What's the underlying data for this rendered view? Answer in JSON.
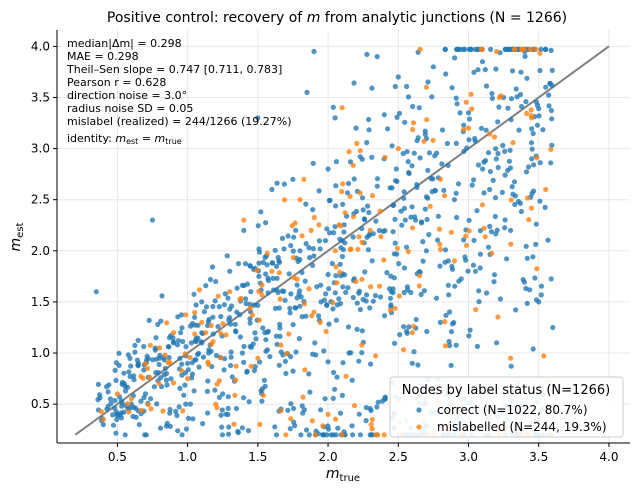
{
  "chart_data": {
    "type": "scatter",
    "title": "Positive control: recovery of m from analytic junctions (N = 1266)",
    "title_parts": {
      "before": "Positive control: recovery of ",
      "var": "m",
      "after": " from analytic junctions (N = 1266)"
    },
    "xlabel": {
      "base": "m",
      "sub": "true"
    },
    "ylabel": {
      "base": "m",
      "sub": "est"
    },
    "xlim": [
      0.07,
      4.15
    ],
    "ylim": [
      0.12,
      4.16
    ],
    "xticks": [
      0.5,
      1.0,
      1.5,
      2.0,
      2.5,
      3.0,
      3.5,
      4.0
    ],
    "xtick_labels": [
      "0.5",
      "1.0",
      "1.5",
      "2.0",
      "2.5",
      "3.0",
      "3.5",
      "4.0"
    ],
    "yticks": [
      0.5,
      1.0,
      1.5,
      2.0,
      2.5,
      3.0,
      3.5,
      4.0
    ],
    "ytick_labels": [
      "0.5",
      "1.0",
      "1.5",
      "2.0",
      "2.5",
      "3.0",
      "3.5",
      "4.0"
    ],
    "grid": true,
    "stats": [
      "median|Δm| = 0.298",
      "MAE = 0.298",
      "Theil–Sen slope = 0.747 [0.711, 0.783]",
      "Pearson r = 0.628",
      "direction noise = 3.0°",
      "radius noise SD = 0.05",
      "mislabel (realized) = 244/1266 (19.27%)"
    ],
    "identity_label": {
      "prefix": "identity: ",
      "lhs": "m",
      "lhs_sub": "est",
      "eq": " = ",
      "rhs": "m",
      "rhs_sub": "true"
    },
    "identity_line": {
      "x": [
        0.2,
        4.0
      ],
      "y": [
        0.2,
        4.0
      ],
      "color": "#808080"
    },
    "series": [
      {
        "name": "correct",
        "count": 1022,
        "color": "#1f77b4"
      },
      {
        "name": "mislabelled",
        "count": 244,
        "color": "#ff7f0e"
      }
    ],
    "legend": {
      "title": "Nodes by label status (N=1266)",
      "entries": [
        "correct (N=1022, 80.7%)",
        "mislabelled (N=244, 19.3%)"
      ],
      "placement": "lower-right"
    },
    "sample_points": {
      "correct": [
        [
          0.35,
          1.6
        ],
        [
          0.4,
          0.3
        ],
        [
          0.45,
          0.55
        ],
        [
          0.5,
          0.4
        ],
        [
          0.55,
          0.7
        ],
        [
          0.6,
          0.5
        ],
        [
          0.65,
          0.9
        ],
        [
          0.7,
          0.6
        ],
        [
          0.75,
          2.3
        ],
        [
          0.8,
          0.95
        ],
        [
          0.85,
          0.8
        ],
        [
          0.9,
          1.1
        ],
        [
          0.95,
          1.2
        ],
        [
          1.0,
          0.9
        ],
        [
          1.05,
          1.35
        ],
        [
          1.1,
          1.5
        ],
        [
          1.15,
          1.0
        ],
        [
          1.2,
          1.7
        ],
        [
          1.25,
          0.6
        ],
        [
          1.3,
          1.8
        ],
        [
          1.35,
          1.4
        ],
        [
          1.4,
          2.2
        ],
        [
          1.45,
          1.6
        ],
        [
          1.5,
          3.3
        ],
        [
          1.55,
          1.2
        ],
        [
          1.6,
          2.6
        ],
        [
          1.65,
          1.9
        ],
        [
          1.7,
          0.8
        ],
        [
          1.75,
          2.7
        ],
        [
          1.8,
          2.0
        ],
        [
          1.85,
          3.55
        ],
        [
          1.9,
          3.95
        ],
        [
          1.95,
          1.5
        ],
        [
          2.0,
          2.8
        ],
        [
          2.05,
          3.3
        ],
        [
          2.1,
          2.1
        ],
        [
          2.15,
          1.0
        ],
        [
          2.2,
          3.2
        ],
        [
          2.25,
          2.4
        ],
        [
          2.3,
          0.2
        ],
        [
          2.35,
          3.9
        ],
        [
          2.4,
          2.9
        ],
        [
          2.45,
          1.6
        ],
        [
          2.5,
          3.7
        ],
        [
          2.55,
          2.3
        ],
        [
          2.6,
          0.9
        ],
        [
          2.65,
          3.4
        ],
        [
          2.7,
          2.0
        ],
        [
          2.75,
          3.8
        ],
        [
          2.8,
          1.3
        ],
        [
          2.85,
          3.05
        ],
        [
          2.9,
          2.5
        ],
        [
          2.95,
          0.55
        ],
        [
          3.0,
          3.35
        ],
        [
          3.05,
          1.8
        ],
        [
          3.1,
          3.85
        ],
        [
          3.15,
          2.6
        ],
        [
          3.2,
          1.1
        ],
        [
          3.25,
          3.5
        ],
        [
          3.3,
          2.2
        ],
        [
          3.35,
          0.7
        ],
        [
          3.4,
          3.95
        ],
        [
          3.45,
          2.9
        ],
        [
          3.5,
          1.5
        ],
        [
          3.55,
          3.6
        ],
        [
          3.6,
          1.25
        ]
      ],
      "mislabelled": [
        [
          0.4,
          0.35
        ],
        [
          0.5,
          0.6
        ],
        [
          0.6,
          0.55
        ],
        [
          0.7,
          0.9
        ],
        [
          0.8,
          1.05
        ],
        [
          0.9,
          1.2
        ],
        [
          1.0,
          0.75
        ],
        [
          1.1,
          1.3
        ],
        [
          1.2,
          0.5
        ],
        [
          1.3,
          1.6
        ],
        [
          1.4,
          2.3
        ],
        [
          1.5,
          0.95
        ],
        [
          1.6,
          1.8
        ],
        [
          1.7,
          0.2
        ],
        [
          1.8,
          2.5
        ],
        [
          1.9,
          1.4
        ],
        [
          2.0,
          0.4
        ],
        [
          2.1,
          3.4
        ],
        [
          2.2,
          1.7
        ],
        [
          2.3,
          2.2
        ],
        [
          2.4,
          0.2
        ],
        [
          2.5,
          3.0
        ],
        [
          2.6,
          1.2
        ],
        [
          2.7,
          3.6
        ],
        [
          2.8,
          2.7
        ],
        [
          2.9,
          1.9
        ],
        [
          3.0,
          3.2
        ],
        [
          3.1,
          2.45
        ],
        [
          3.2,
          3.95
        ],
        [
          3.3,
          0.95
        ],
        [
          3.45,
          3.3
        ],
        [
          3.55,
          2.6
        ]
      ]
    }
  }
}
